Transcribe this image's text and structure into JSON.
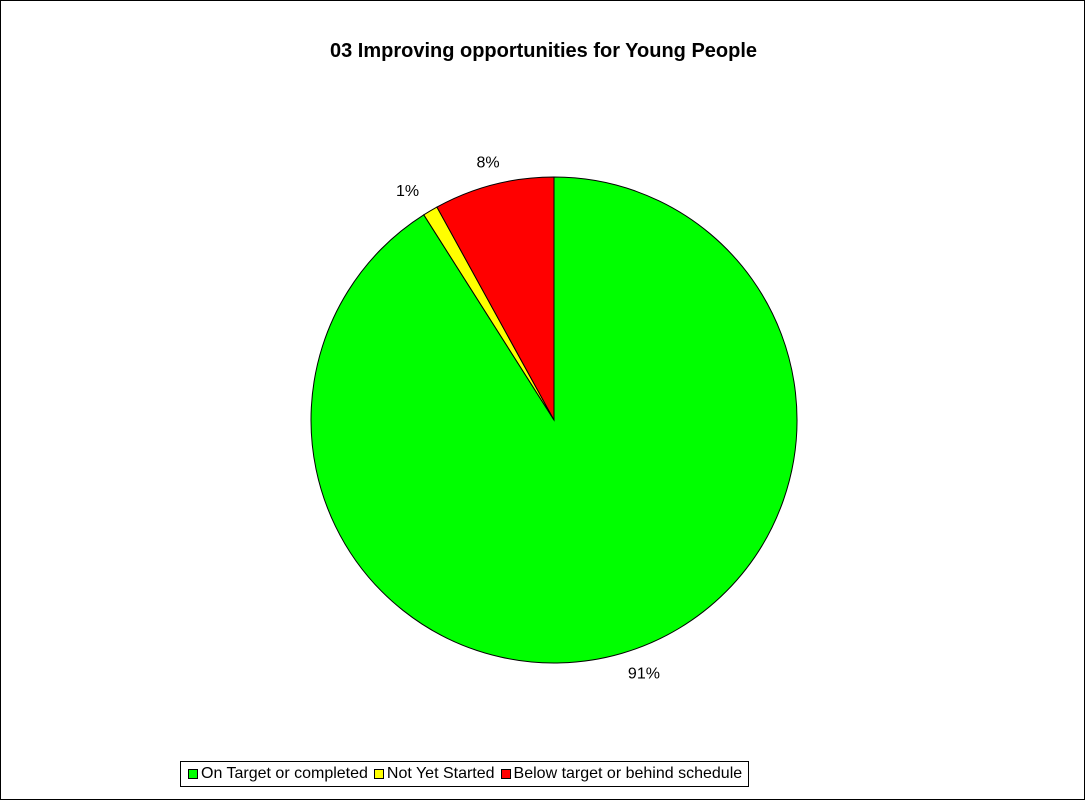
{
  "chart_data": {
    "type": "pie",
    "title": "03 Improving opportunities for Young People",
    "categories": [
      "On Target or completed",
      "Not Yet Started",
      "Below target or behind schedule"
    ],
    "values": [
      91,
      1,
      8
    ],
    "labels": [
      "91%",
      "1%",
      "8%"
    ],
    "colors": [
      "#00FF00",
      "#FFFF00",
      "#FF0000"
    ],
    "legend_position": "bottom"
  }
}
